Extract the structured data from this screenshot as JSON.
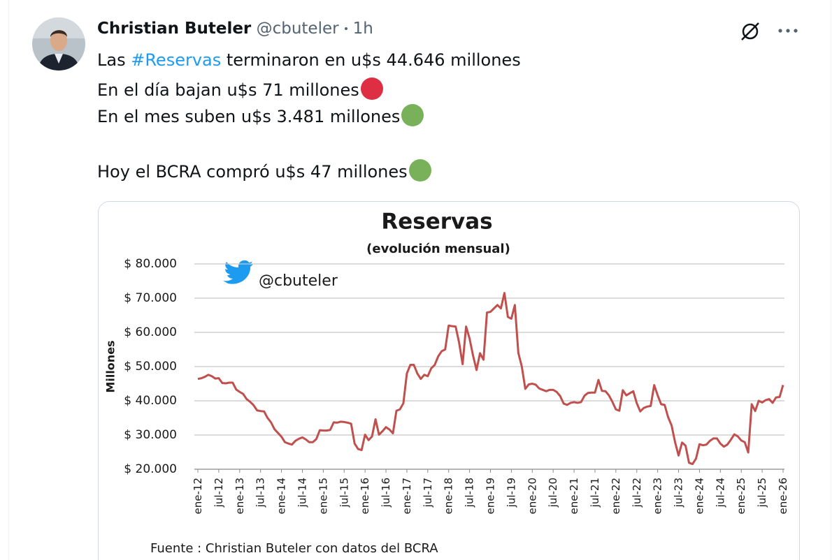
{
  "tweet": {
    "author": "Christian Buteler",
    "handle": "@cbuteler",
    "time": "1h",
    "lines": [
      [
        "Las ",
        "#Reservas",
        " terminaron en u$s 44.646 millones"
      ],
      [
        "En el día bajan u$s 71 millones"
      ],
      [
        "En el mes suben u$s 3.481 millones"
      ],
      [
        "Hoy el BCRA compró u$s 47 millones"
      ]
    ]
  },
  "chart_data": {
    "type": "line",
    "title": "Reservas",
    "subtitle": "(evolución mensual)",
    "y_label": "Millones",
    "watermark": "@cbuteler",
    "source": "Fuente : Christian Buteler con datos del BCRA",
    "color": "#c0504d",
    "grid": true,
    "ylim": [
      20000,
      80000
    ],
    "yticks": [
      {
        "value": 20000,
        "label": "$ 20.000"
      },
      {
        "value": 30000,
        "label": "$ 30.000"
      },
      {
        "value": 40000,
        "label": "$ 40.000"
      },
      {
        "value": 50000,
        "label": "$ 50.000"
      },
      {
        "value": 60000,
        "label": "$ 60.000"
      },
      {
        "value": 70000,
        "label": "$ 70.000"
      },
      {
        "value": 80000,
        "label": "$ 80.000"
      }
    ],
    "categories": [
      "ene-12",
      null,
      null,
      null,
      null,
      null,
      "jul-12",
      null,
      null,
      null,
      null,
      null,
      "ene-13",
      null,
      null,
      null,
      null,
      null,
      "jul-13",
      null,
      null,
      null,
      null,
      null,
      "ene-14",
      null,
      null,
      null,
      null,
      null,
      "jul-14",
      null,
      null,
      null,
      null,
      null,
      "ene-15",
      null,
      null,
      null,
      null,
      null,
      "jul-15",
      null,
      null,
      null,
      null,
      null,
      "ene-16",
      null,
      null,
      null,
      null,
      null,
      "jul-16",
      null,
      null,
      null,
      null,
      null,
      "ene-17",
      null,
      null,
      null,
      null,
      null,
      "jul-17",
      null,
      null,
      null,
      null,
      null,
      "ene-18",
      null,
      null,
      null,
      null,
      null,
      "jul-18",
      null,
      null,
      null,
      null,
      null,
      "ene-19",
      null,
      null,
      null,
      null,
      null,
      "jul-19",
      null,
      null,
      null,
      null,
      null,
      "ene-20",
      null,
      null,
      null,
      null,
      null,
      "jul-20",
      null,
      null,
      null,
      null,
      null,
      "ene-21",
      null,
      null,
      null,
      null,
      null,
      "jul-21",
      null,
      null,
      null,
      null,
      null,
      "ene-22",
      null,
      null,
      null,
      null,
      null,
      "jul-22",
      null,
      null,
      null,
      null,
      null,
      "ene-23",
      null,
      null,
      null,
      null,
      null,
      "jul-23",
      null,
      null,
      null,
      null,
      null,
      "ene-24",
      null,
      null,
      null,
      null,
      null,
      "jul-24",
      null,
      null,
      null,
      null,
      null,
      "ene-25",
      null,
      null,
      null,
      null,
      null,
      "jul-25",
      null,
      null,
      null,
      null,
      null,
      "ene-26"
    ],
    "values": [
      46400,
      46600,
      47000,
      47600,
      47200,
      46500,
      46600,
      45200,
      45100,
      45300,
      45300,
      43300,
      42600,
      42000,
      40500,
      39700,
      38700,
      37200,
      37000,
      36900,
      35000,
      33700,
      31700,
      30600,
      29500,
      27900,
      27500,
      27200,
      28300,
      28900,
      29300,
      28700,
      27900,
      27900,
      28800,
      31400,
      31300,
      31300,
      31500,
      33700,
      33600,
      33900,
      33800,
      33600,
      33300,
      27500,
      25900,
      25600,
      30100,
      28500,
      29600,
      34600,
      30100,
      31100,
      32300,
      31600,
      30500,
      37100,
      37500,
      39300,
      48000,
      50500,
      50500,
      48000,
      46400,
      47600,
      47200,
      49500,
      50500,
      53000,
      54500,
      55000,
      62000,
      61800,
      61700,
      57000,
      50700,
      61700,
      58200,
      53200,
      49000,
      53900,
      52000,
      65800,
      66000,
      67000,
      68000,
      67000,
      71500,
      64500,
      64000,
      68000,
      54000,
      50000,
      43500,
      44800,
      45000,
      44700,
      43600,
      43200,
      42800,
      43200,
      43200,
      42600,
      41400,
      39200,
      38800,
      39400,
      39600,
      39400,
      39600,
      41500,
      42300,
      42400,
      42400,
      46100,
      42900,
      42800,
      41600,
      39700,
      37500,
      37100,
      43100,
      41600,
      42200,
      42800,
      39300,
      36900,
      37900,
      38300,
      38500,
      44600,
      41600,
      39000,
      38800,
      35200,
      32800,
      27900,
      24000,
      27800,
      26900,
      21900,
      21500,
      23100,
      27300,
      27000,
      27200,
      28300,
      29000,
      29000,
      27500,
      26600,
      27200,
      28600,
      30200,
      29600,
      28400,
      27900,
      24900,
      39000,
      37000,
      40000,
      39500,
      40200,
      40500,
      39400,
      41000,
      41100,
      44600
    ]
  }
}
